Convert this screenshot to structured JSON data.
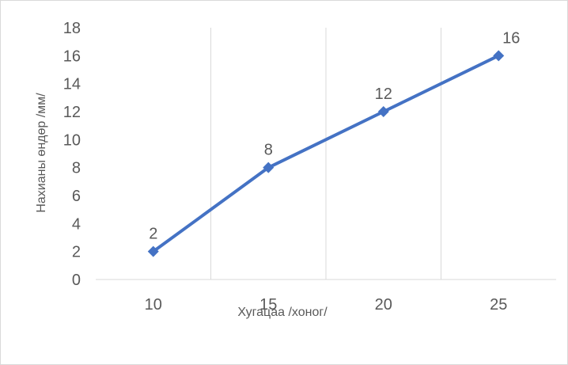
{
  "chart_data": {
    "type": "line",
    "categories": [
      "10",
      "15",
      "20",
      "25"
    ],
    "series": [
      {
        "values": [
          2,
          8,
          12,
          16
        ],
        "data_labels": [
          "2",
          "8",
          "12",
          "16"
        ]
      }
    ],
    "y_ticks": [
      "0",
      "2",
      "4",
      "6",
      "8",
      "10",
      "12",
      "14",
      "16",
      "18"
    ],
    "xlabel": "Хугацаа /хоног/",
    "ylabel": "Нахианы өндөр /мм/",
    "ylim": [
      0,
      18
    ],
    "grid": "vertical",
    "legend": "none",
    "colors": {
      "series": "#4472c4",
      "grid": "#d9d9d9",
      "text": "#595959"
    },
    "marker": "diamond"
  }
}
